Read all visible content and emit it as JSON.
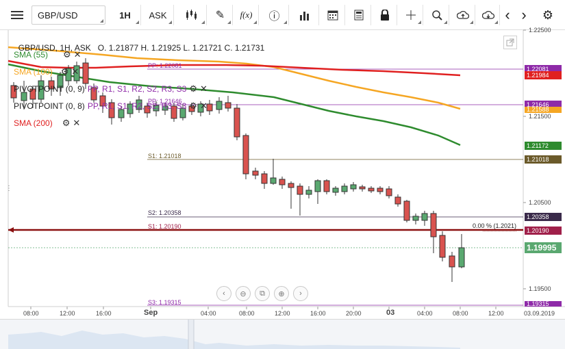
{
  "toolbar": {
    "menu_icon": "☰",
    "symbol": "GBP/USD",
    "timeframe": "1H",
    "price_type": "ASK",
    "chart_type_icon": "candles-icon",
    "draw_icon": "✎",
    "fx_label": "f(x)",
    "info_icon": "ⓘ",
    "volume_icon": "bars-icon",
    "calendar_icon": "calendar-icon",
    "news_icon": "news-icon",
    "lock_icon": "lock-icon",
    "crosshair_icon": "crosshair-icon",
    "zoom_icon": "zoom-icon",
    "upload_icon": "upload-icon",
    "download_icon": "download-icon",
    "prev_icon": "‹",
    "next_icon": "›",
    "settings_icon": "⚙"
  },
  "header": {
    "symbol_info": "GBP/USD, 1H, ASK",
    "ohlc": "O. 1.21877 H. 1.21925 L. 1.21721 C. 1.21731"
  },
  "indicators": [
    {
      "label": "SMA (55)",
      "color": "#2e8b2e"
    },
    {
      "label": "SMA (100)",
      "color": "#f5a623"
    },
    {
      "label": "PIVOTPOINT (0, 9)",
      "color": "#222222",
      "extra": "PP, R1, S1, R2, S2, R3, S3"
    },
    {
      "label": "PIVOTPOINT (0, 8)",
      "color": "#222222",
      "extra": "PP, R1, S1, R2, S2, R3, S3"
    },
    {
      "label": "SMA (200)",
      "color": "#e02020"
    }
  ],
  "price_axis": {
    "ticks": [
      "1.22500",
      "1.21500",
      "1.20500",
      "1.19500"
    ],
    "tags": [
      {
        "value": "1.22081",
        "color": "#8e2aa8"
      },
      {
        "value": "1.21984",
        "color": "#e02020"
      },
      {
        "value": "1.21646",
        "color": "#8e2aa8"
      },
      {
        "value": "1.21588",
        "color": "#f5a623"
      },
      {
        "value": "1.21172",
        "color": "#2e8b2e"
      },
      {
        "value": "1.21018",
        "color": "#6b5a2a"
      },
      {
        "value": "1.20358",
        "color": "#3a2a4a"
      },
      {
        "value": "1.20190",
        "color": "#a0204a"
      },
      {
        "value": "1.19995",
        "color": "#5aa870"
      },
      {
        "value": "1.19315",
        "color": "#8e2aa8"
      }
    ]
  },
  "levels": {
    "pp1": "PP: 1.22081",
    "pp2": "PP: 1.21646",
    "s1_upper": "S1: 1.21018",
    "s2": "S2: 1.20358",
    "s1_lower": "S1: 1.20190",
    "s3": "S3: 1.19315",
    "fib": "0.00 % (1.2021)"
  },
  "time_axis": {
    "labels": [
      "08:00",
      "12:00",
      "16:00",
      "Sep",
      "04:00",
      "08:00",
      "12:00",
      "16:00",
      "20:00",
      "03",
      "04:00",
      "08:00",
      "12:00",
      "03.09.2019"
    ]
  }
}
